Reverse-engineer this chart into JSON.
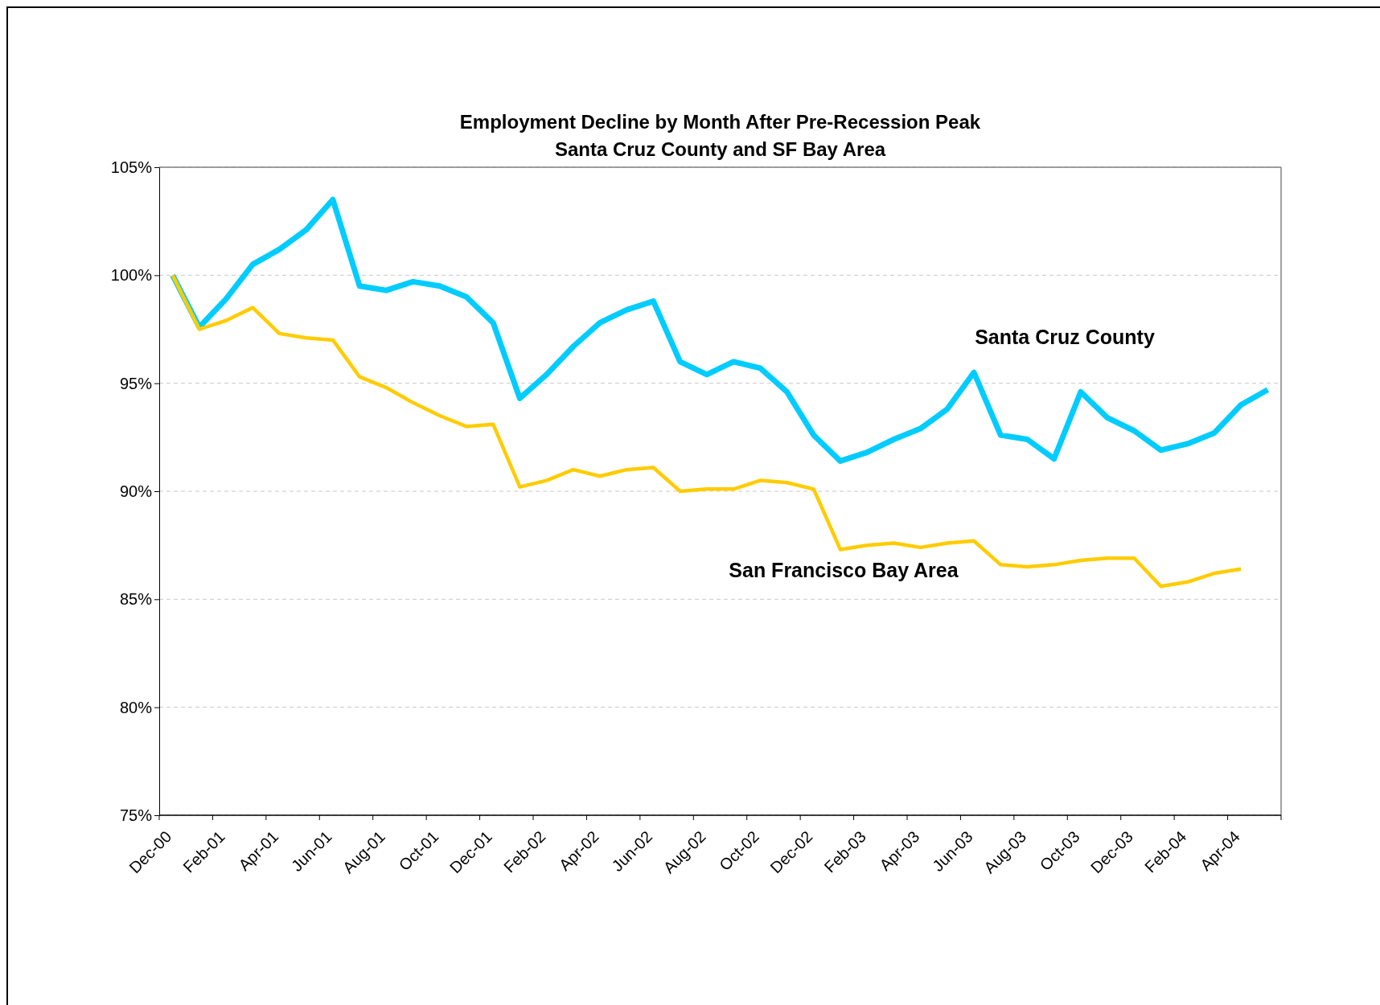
{
  "chart_data": {
    "type": "line",
    "title": "Employment Decline by Month After Pre-Recession Peak\nSanta Cruz County and SF Bay Area",
    "categories": [
      "Dec-00",
      null,
      "Feb-01",
      null,
      "Apr-01",
      null,
      "Jun-01",
      null,
      "Aug-01",
      null,
      "Oct-01",
      null,
      "Dec-01",
      null,
      "Feb-02",
      null,
      "Apr-02",
      null,
      "Jun-02",
      null,
      "Aug-02",
      null,
      "Oct-02",
      null,
      "Dec-02",
      null,
      "Feb-03",
      null,
      "Apr-03",
      null,
      "Jun-03",
      null,
      "Aug-03",
      null,
      "Oct-03",
      null,
      "Dec-03",
      null,
      "Feb-04",
      null,
      "Apr-04",
      null
    ],
    "series": [
      {
        "name": "Santa Cruz County",
        "color": "#00ccff",
        "values": [
          100,
          97.6,
          98.9,
          100.5,
          101.2,
          102.1,
          103.5,
          99.5,
          99.3,
          99.7,
          99.5,
          99.0,
          97.8,
          94.3,
          95.4,
          96.7,
          97.8,
          98.4,
          98.8,
          96.0,
          95.4,
          96.0,
          95.7,
          94.6,
          92.6,
          91.4,
          91.8,
          92.4,
          92.9,
          93.8,
          95.5,
          92.6,
          92.4,
          91.5,
          94.6,
          93.4,
          92.8,
          91.9,
          92.2,
          92.7,
          94.0,
          94.7
        ]
      },
      {
        "name": "San Francisco Bay Area",
        "color": "#ffcc00",
        "values": [
          100,
          97.5,
          97.9,
          98.5,
          97.3,
          97.1,
          97.0,
          95.3,
          94.8,
          94.1,
          93.5,
          93.0,
          93.1,
          90.2,
          90.5,
          91.0,
          90.7,
          91.0,
          91.1,
          90.0,
          90.1,
          90.1,
          90.5,
          90.4,
          90.1,
          87.3,
          87.5,
          87.6,
          87.4,
          87.6,
          87.7,
          86.6,
          86.5,
          86.6,
          86.8,
          86.9,
          86.9,
          85.6,
          85.8,
          86.2,
          86.4,
          null
        ]
      }
    ],
    "ylim": [
      75,
      105
    ],
    "yticks": [
      {
        "value": 75,
        "label": "75%"
      },
      {
        "value": 80,
        "label": "80%"
      },
      {
        "value": 85,
        "label": "85%"
      },
      {
        "value": 90,
        "label": "90%"
      },
      {
        "value": 95,
        "label": "95%"
      },
      {
        "value": 100,
        "label": "100%"
      },
      {
        "value": 105,
        "label": "105%"
      }
    ],
    "grid": "y",
    "legend": false,
    "marker": "none",
    "line_style": "solid"
  }
}
